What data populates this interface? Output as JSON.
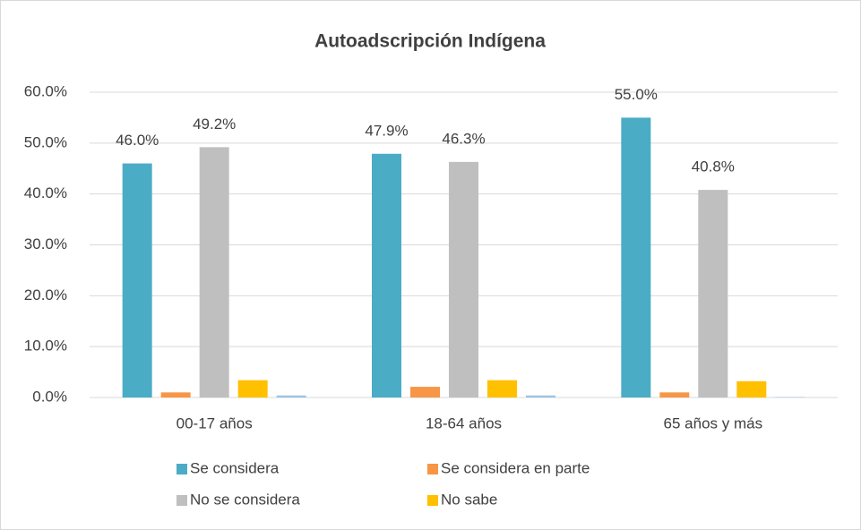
{
  "chart_data": {
    "type": "bar",
    "title": "Autoadscripción Indígena",
    "categories": [
      "00-17 años",
      "18-64 años",
      "65 años y más"
    ],
    "series": [
      {
        "name": "Se considera",
        "color": "#4bacc6",
        "values": [
          46.0,
          47.9,
          55.0
        ],
        "value_labels": [
          "46.0%",
          "47.9%",
          "55.0%"
        ]
      },
      {
        "name": "Se considera en parte",
        "color": "#f79646",
        "values": [
          1.0,
          2.1,
          1.0
        ]
      },
      {
        "name": "No se considera",
        "color": "#bfbfbf",
        "values": [
          49.2,
          46.3,
          40.8
        ],
        "value_labels": [
          "49.2%",
          "46.3%",
          "40.8%"
        ]
      },
      {
        "name": "No sabe",
        "color": "#ffc000",
        "values": [
          3.4,
          3.4,
          3.2
        ]
      },
      {
        "color": "#9dc3e6",
        "values": [
          0.4,
          0.4,
          0.1
        ]
      }
    ],
    "ylim": [
      0,
      60
    ],
    "yticks": [
      {
        "value": 0,
        "label": "0.0%"
      },
      {
        "value": 10,
        "label": "10.0%"
      },
      {
        "value": 20,
        "label": "20.0%"
      },
      {
        "value": 30,
        "label": "30.0%"
      },
      {
        "value": 40,
        "label": "40.0%"
      },
      {
        "value": 50,
        "label": "50.0%"
      },
      {
        "value": 60,
        "label": "60.0%"
      }
    ],
    "grid": true
  }
}
